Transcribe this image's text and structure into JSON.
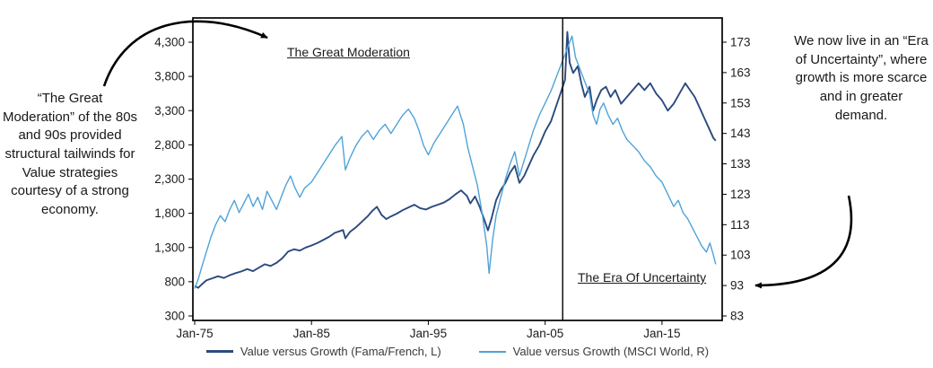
{
  "annotations": {
    "left_note": "“The Great Moderation” of the 80s and 90s provided structural tailwinds for Value strategies courtesy of a strong economy.",
    "right_note": "We now live in an “Era of Uncertainty”, where growth is more scarce and in greater demand.",
    "great_moderation": "The Great Moderation",
    "era_of_uncertainty": "The Era Of Uncertainty"
  },
  "colors": {
    "value_fama_french": "#2b4a7d",
    "value_msci": "#4fa3d8",
    "axis": "#000000",
    "text": "#1c1c1c"
  },
  "chart_data": {
    "type": "line",
    "title": "",
    "grid": false,
    "legend_position": "bottom",
    "x_axis": {
      "range": [
        1975,
        2020
      ],
      "ticks": [
        1975,
        1985,
        1995,
        2005,
        2015
      ],
      "tick_labels": [
        "Jan-75",
        "Jan-85",
        "Jan-95",
        "Jan-05",
        "Jan-15"
      ]
    },
    "y_left": {
      "range": [
        300,
        4300
      ],
      "ticks": [
        300,
        800,
        1300,
        1800,
        2300,
        2800,
        3300,
        3800,
        4300
      ],
      "tick_labels": [
        "300",
        "800",
        "1,300",
        "1,800",
        "2,300",
        "2,800",
        "3,300",
        "3,800",
        "4,300"
      ]
    },
    "y_right": {
      "range": [
        83,
        173
      ],
      "ticks": [
        83,
        93,
        103,
        113,
        123,
        133,
        143,
        153,
        163,
        173
      ],
      "tick_labels": [
        "83",
        "93",
        "103",
        "113",
        "123",
        "133",
        "143",
        "153",
        "163",
        "173"
      ]
    },
    "divider_x": 2006.5,
    "series": [
      {
        "name": "Value versus Growth (Fama/French, L)",
        "axis": "left",
        "color": "#2b4a7d",
        "points": [
          [
            1975.0,
            740
          ],
          [
            1975.3,
            710
          ],
          [
            1975.6,
            760
          ],
          [
            1976.0,
            820
          ],
          [
            1976.5,
            850
          ],
          [
            1977.0,
            880
          ],
          [
            1977.5,
            855
          ],
          [
            1978.0,
            895
          ],
          [
            1978.5,
            925
          ],
          [
            1979.0,
            950
          ],
          [
            1979.5,
            985
          ],
          [
            1980.0,
            955
          ],
          [
            1980.5,
            1005
          ],
          [
            1981.0,
            1055
          ],
          [
            1981.5,
            1030
          ],
          [
            1982.0,
            1075
          ],
          [
            1982.5,
            1145
          ],
          [
            1983.0,
            1240
          ],
          [
            1983.5,
            1275
          ],
          [
            1984.0,
            1255
          ],
          [
            1984.5,
            1300
          ],
          [
            1985.0,
            1330
          ],
          [
            1985.5,
            1365
          ],
          [
            1986.0,
            1410
          ],
          [
            1986.5,
            1455
          ],
          [
            1987.0,
            1515
          ],
          [
            1987.7,
            1555
          ],
          [
            1987.9,
            1435
          ],
          [
            1988.3,
            1530
          ],
          [
            1988.8,
            1595
          ],
          [
            1989.3,
            1675
          ],
          [
            1989.8,
            1755
          ],
          [
            1990.2,
            1835
          ],
          [
            1990.6,
            1895
          ],
          [
            1991.0,
            1775
          ],
          [
            1991.4,
            1715
          ],
          [
            1991.8,
            1755
          ],
          [
            1992.3,
            1795
          ],
          [
            1992.8,
            1845
          ],
          [
            1993.3,
            1885
          ],
          [
            1993.8,
            1925
          ],
          [
            1994.3,
            1875
          ],
          [
            1994.8,
            1855
          ],
          [
            1995.3,
            1895
          ],
          [
            1995.8,
            1925
          ],
          [
            1996.3,
            1955
          ],
          [
            1996.8,
            2005
          ],
          [
            1997.3,
            2075
          ],
          [
            1997.8,
            2135
          ],
          [
            1998.3,
            2055
          ],
          [
            1998.6,
            1945
          ],
          [
            1999.0,
            2045
          ],
          [
            1999.4,
            1895
          ],
          [
            1999.8,
            1700
          ],
          [
            2000.1,
            1550
          ],
          [
            2000.4,
            1720
          ],
          [
            2000.8,
            1990
          ],
          [
            2001.2,
            2140
          ],
          [
            2001.6,
            2245
          ],
          [
            2002.0,
            2395
          ],
          [
            2002.4,
            2495
          ],
          [
            2002.8,
            2245
          ],
          [
            2003.2,
            2345
          ],
          [
            2003.6,
            2495
          ],
          [
            2004.0,
            2645
          ],
          [
            2004.5,
            2795
          ],
          [
            2005.0,
            2995
          ],
          [
            2005.5,
            3145
          ],
          [
            2006.0,
            3395
          ],
          [
            2006.4,
            3595
          ],
          [
            2006.7,
            3750
          ],
          [
            2006.9,
            4450
          ],
          [
            2007.1,
            4000
          ],
          [
            2007.4,
            3850
          ],
          [
            2007.8,
            3950
          ],
          [
            2008.1,
            3700
          ],
          [
            2008.4,
            3500
          ],
          [
            2008.8,
            3650
          ],
          [
            2009.1,
            3300
          ],
          [
            2009.4,
            3450
          ],
          [
            2009.8,
            3600
          ],
          [
            2010.2,
            3650
          ],
          [
            2010.6,
            3500
          ],
          [
            2011.0,
            3600
          ],
          [
            2011.5,
            3400
          ],
          [
            2012.0,
            3500
          ],
          [
            2012.5,
            3600
          ],
          [
            2013.0,
            3700
          ],
          [
            2013.5,
            3600
          ],
          [
            2014.0,
            3700
          ],
          [
            2014.5,
            3550
          ],
          [
            2015.0,
            3450
          ],
          [
            2015.5,
            3300
          ],
          [
            2016.0,
            3400
          ],
          [
            2016.5,
            3550
          ],
          [
            2017.0,
            3700
          ],
          [
            2017.4,
            3600
          ],
          [
            2017.8,
            3500
          ],
          [
            2018.2,
            3350
          ],
          [
            2018.6,
            3200
          ],
          [
            2019.0,
            3050
          ],
          [
            2019.4,
            2900
          ],
          [
            2019.6,
            2860
          ]
        ]
      },
      {
        "name": "Value versus Growth (MSCI World, R)",
        "axis": "right",
        "color": "#4fa3d8",
        "points": [
          [
            1975.0,
            92
          ],
          [
            1975.3,
            95
          ],
          [
            1975.6,
            99
          ],
          [
            1976.0,
            104
          ],
          [
            1976.4,
            109
          ],
          [
            1976.8,
            113
          ],
          [
            1977.2,
            116
          ],
          [
            1977.6,
            114
          ],
          [
            1978.0,
            118
          ],
          [
            1978.4,
            121
          ],
          [
            1978.8,
            117
          ],
          [
            1979.2,
            120
          ],
          [
            1979.6,
            123
          ],
          [
            1980.0,
            119
          ],
          [
            1980.4,
            122
          ],
          [
            1980.8,
            118
          ],
          [
            1981.2,
            124
          ],
          [
            1981.6,
            121
          ],
          [
            1982.0,
            118
          ],
          [
            1982.4,
            122
          ],
          [
            1982.8,
            126
          ],
          [
            1983.2,
            129
          ],
          [
            1983.6,
            125
          ],
          [
            1984.0,
            122
          ],
          [
            1984.4,
            125
          ],
          [
            1985.0,
            127
          ],
          [
            1985.5,
            130
          ],
          [
            1986.0,
            133
          ],
          [
            1986.5,
            136
          ],
          [
            1987.0,
            139
          ],
          [
            1987.6,
            142
          ],
          [
            1987.9,
            131
          ],
          [
            1988.3,
            135
          ],
          [
            1988.8,
            139
          ],
          [
            1989.3,
            142
          ],
          [
            1989.8,
            144
          ],
          [
            1990.3,
            141
          ],
          [
            1990.8,
            144
          ],
          [
            1991.3,
            146
          ],
          [
            1991.8,
            143
          ],
          [
            1992.3,
            146
          ],
          [
            1992.8,
            149
          ],
          [
            1993.3,
            151
          ],
          [
            1993.8,
            148
          ],
          [
            1994.2,
            144
          ],
          [
            1994.6,
            139
          ],
          [
            1995.0,
            136
          ],
          [
            1995.5,
            140
          ],
          [
            1996.0,
            143
          ],
          [
            1996.5,
            146
          ],
          [
            1997.0,
            149
          ],
          [
            1997.5,
            152
          ],
          [
            1998.0,
            146
          ],
          [
            1998.4,
            138
          ],
          [
            1998.8,
            132
          ],
          [
            1999.2,
            126
          ],
          [
            1999.6,
            117
          ],
          [
            2000.0,
            106
          ],
          [
            2000.2,
            97
          ],
          [
            2000.5,
            108
          ],
          [
            2000.8,
            116
          ],
          [
            2001.2,
            122
          ],
          [
            2001.6,
            128
          ],
          [
            2002.0,
            133
          ],
          [
            2002.4,
            137
          ],
          [
            2002.8,
            129
          ],
          [
            2003.2,
            134
          ],
          [
            2003.6,
            139
          ],
          [
            2004.0,
            144
          ],
          [
            2004.5,
            149
          ],
          [
            2005.0,
            153
          ],
          [
            2005.5,
            157
          ],
          [
            2006.0,
            162
          ],
          [
            2006.4,
            166
          ],
          [
            2006.8,
            170
          ],
          [
            2007.1,
            173
          ],
          [
            2007.3,
            175
          ],
          [
            2007.6,
            168
          ],
          [
            2008.0,
            164
          ],
          [
            2008.4,
            160
          ],
          [
            2008.8,
            156
          ],
          [
            2009.1,
            149
          ],
          [
            2009.4,
            146
          ],
          [
            2009.7,
            151
          ],
          [
            2010.0,
            153
          ],
          [
            2010.4,
            149
          ],
          [
            2010.8,
            146
          ],
          [
            2011.2,
            148
          ],
          [
            2011.6,
            144
          ],
          [
            2012.0,
            141
          ],
          [
            2012.5,
            139
          ],
          [
            2013.0,
            137
          ],
          [
            2013.5,
            134
          ],
          [
            2014.0,
            132
          ],
          [
            2014.5,
            129
          ],
          [
            2015.0,
            127
          ],
          [
            2015.5,
            123
          ],
          [
            2016.0,
            119
          ],
          [
            2016.4,
            121
          ],
          [
            2016.8,
            117
          ],
          [
            2017.2,
            115
          ],
          [
            2017.6,
            112
          ],
          [
            2018.0,
            109
          ],
          [
            2018.4,
            106
          ],
          [
            2018.8,
            104
          ],
          [
            2019.1,
            107
          ],
          [
            2019.4,
            103
          ],
          [
            2019.6,
            100
          ]
        ]
      }
    ]
  }
}
